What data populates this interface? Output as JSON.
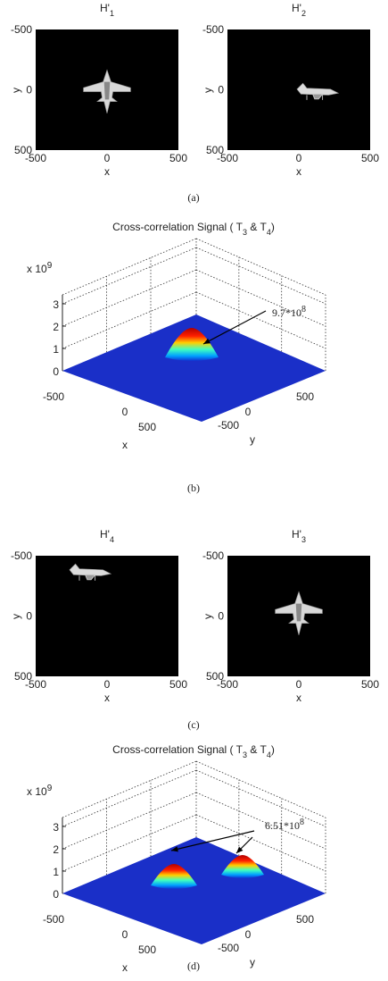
{
  "figure": {
    "panels": [
      {
        "kind": "images",
        "caption": "(a)",
        "plots": [
          {
            "title": "H'",
            "title_sub": "1",
            "x_label": "x",
            "y_label": "y",
            "x_ticks": [
              "-500",
              "0",
              "500"
            ],
            "y_ticks": [
              "-500",
              "0",
              "500"
            ]
          },
          {
            "title": "H'",
            "title_sub": "2",
            "x_label": "x",
            "y_label": "y",
            "x_ticks": [
              "-500",
              "0",
              "500"
            ],
            "y_ticks": [
              "-500",
              "0",
              "500"
            ]
          }
        ]
      },
      {
        "kind": "surface",
        "caption": "(b)",
        "title_main": "Cross-correlation  Signal ( T",
        "title_sub1": "3",
        "title_mid": " & T",
        "title_sub2": "4",
        "title_end": ")",
        "scale": "x 10",
        "scale_exp": "9",
        "z_ticks": [
          "0",
          "1",
          "2",
          "3"
        ],
        "x_ticks": [
          "-500",
          "0",
          "500"
        ],
        "y_ticks": [
          "-500",
          "0",
          "500"
        ],
        "x_label": "x",
        "y_label": "y",
        "annotation": "9.7*10",
        "annotation_exp": "8"
      },
      {
        "kind": "images",
        "caption": "(c)",
        "plots": [
          {
            "title": "H'",
            "title_sub": "4",
            "x_label": "x",
            "y_label": "y",
            "x_ticks": [
              "-500",
              "0",
              "500"
            ],
            "y_ticks": [
              "-500",
              "0",
              "500"
            ]
          },
          {
            "title": "H'",
            "title_sub": "3",
            "x_label": "x",
            "y_label": "y",
            "x_ticks": [
              "-500",
              "0",
              "500"
            ],
            "y_ticks": [
              "-500",
              "0",
              "500"
            ]
          }
        ]
      },
      {
        "kind": "surface",
        "caption": "(d)",
        "title_main": "Cross-correlation  Signal ( T",
        "title_sub1": "3",
        "title_mid": " & T",
        "title_sub2": "4",
        "title_end": ")",
        "scale": "x 10",
        "scale_exp": "9",
        "z_ticks": [
          "0",
          "1",
          "2",
          "3"
        ],
        "x_ticks": [
          "-500",
          "0",
          "500"
        ],
        "y_ticks": [
          "-500",
          "0",
          "500"
        ],
        "x_label": "x",
        "y_label": "y",
        "annotation": "6.51*10",
        "annotation_exp": "8"
      }
    ]
  }
}
